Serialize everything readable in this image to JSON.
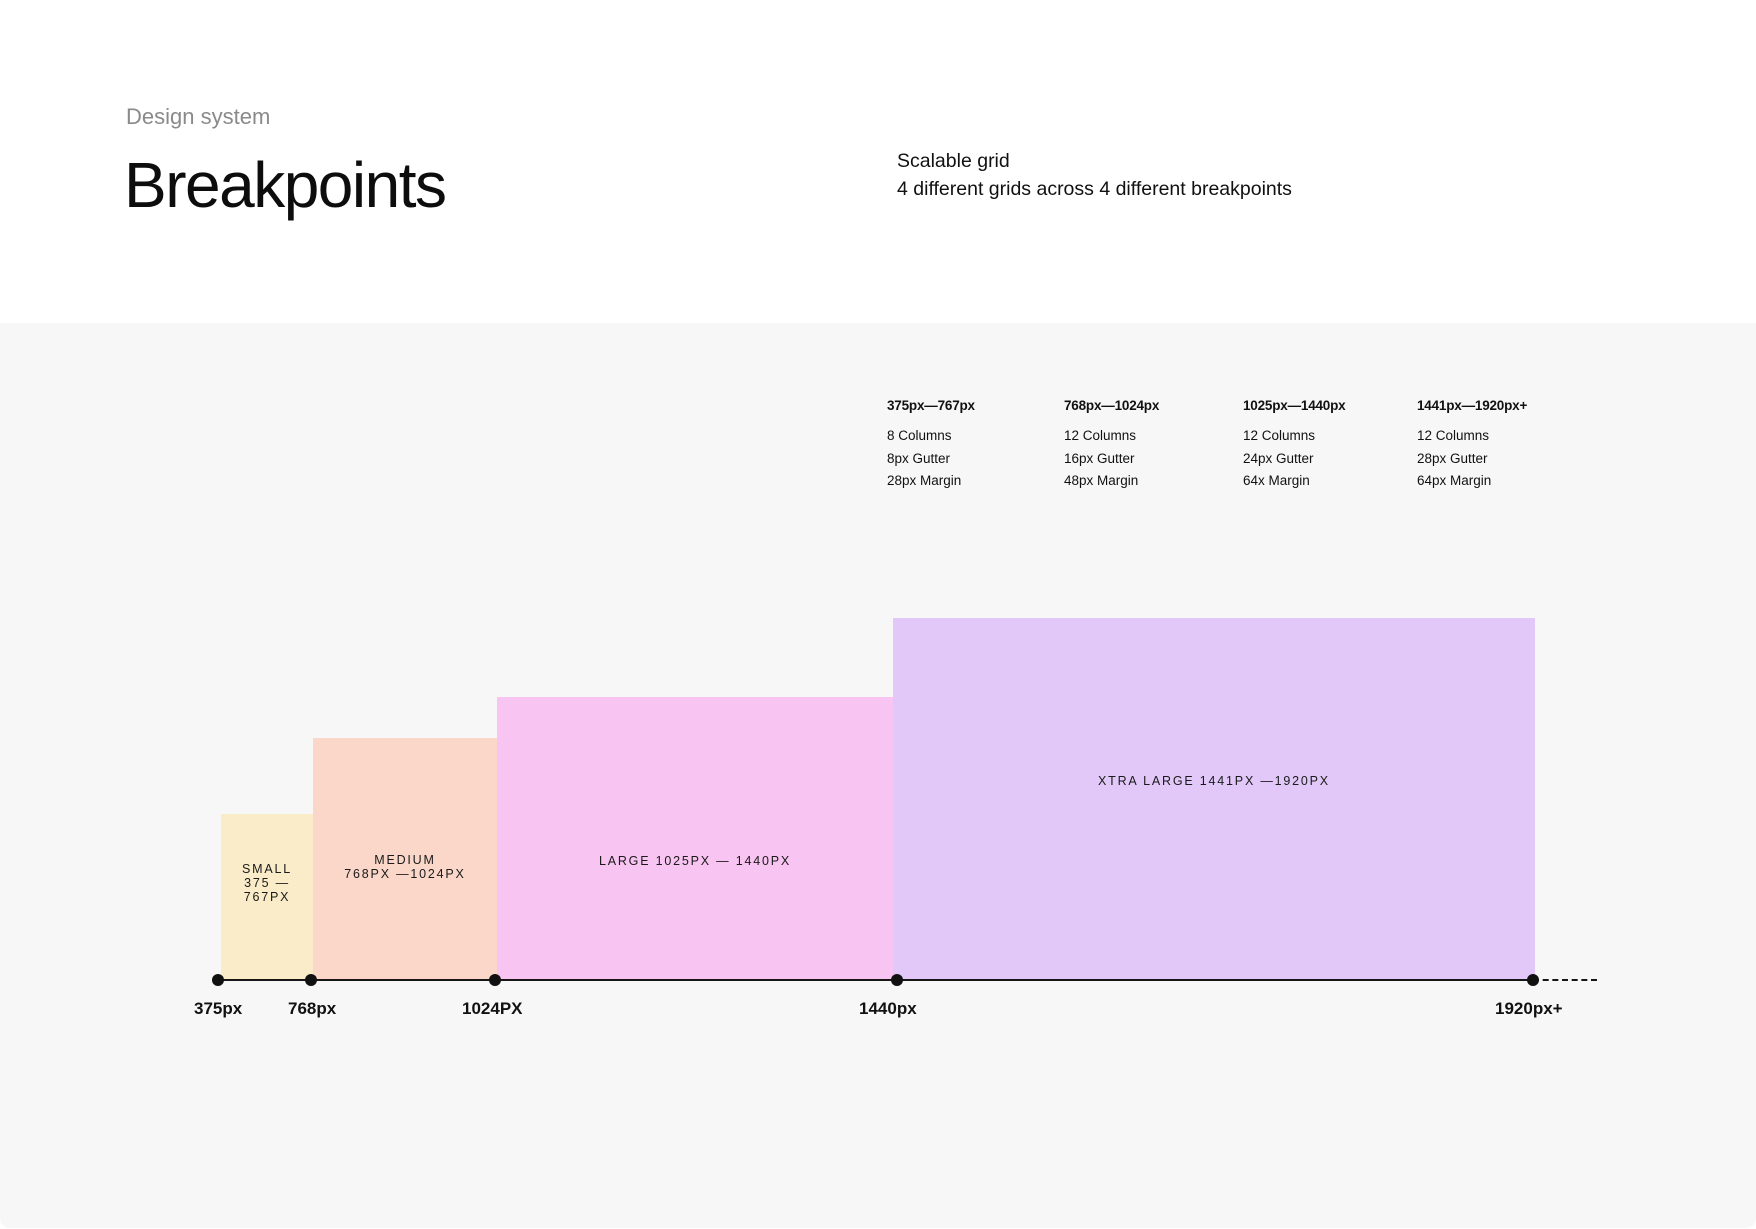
{
  "header": {
    "eyebrow": "Design system",
    "title": "Breakpoints",
    "intro_line1": "Scalable grid",
    "intro_line2": "4 different grids across 4 different breakpoints"
  },
  "specs": [
    {
      "range": "375px—767px",
      "columns": "8 Columns",
      "gutter": "8px Gutter",
      "margin": "28px Margin"
    },
    {
      "range": "768px—1024px",
      "columns": "12 Columns",
      "gutter": "16px Gutter",
      "margin": "48px Margin"
    },
    {
      "range": "1025px—1440px",
      "columns": "12 Columns",
      "gutter": "24px Gutter",
      "margin": "64x Margin"
    },
    {
      "range": "1441px—1920px+",
      "columns": "12 Columns",
      "gutter": "28px Gutter",
      "margin": "64px Margin"
    }
  ],
  "blocks": {
    "small": {
      "line1": "SMALL",
      "line2": "375 —",
      "line3": "767PX",
      "color": "#faecc8"
    },
    "medium": {
      "line1": "MEDIUM",
      "line2": "768PX —1024PX",
      "color": "#fad7c9"
    },
    "large": {
      "line1": "LARGE 1025PX — 1440PX",
      "color": "#f8c4f1"
    },
    "xl": {
      "line1": "XTRA LARGE 1441PX —1920PX",
      "color": "#e1c8f8"
    }
  },
  "axis": {
    "ticks": [
      "375px",
      "768px",
      "1024PX",
      "1440px",
      "1920px+"
    ]
  }
}
